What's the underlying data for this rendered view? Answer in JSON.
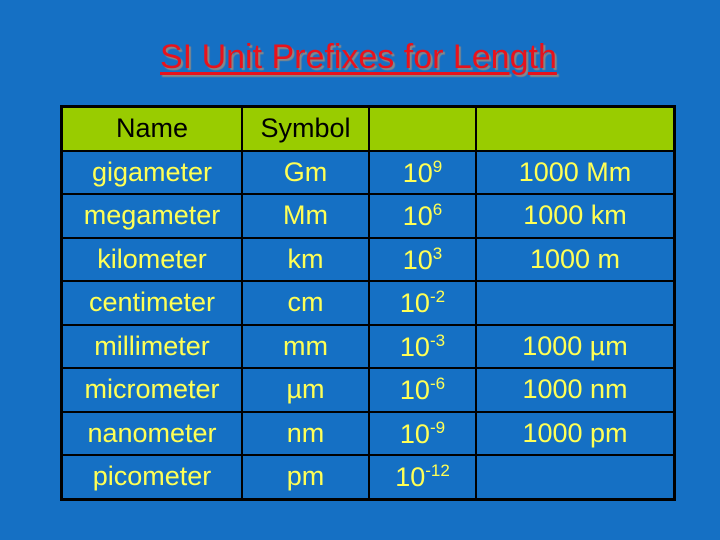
{
  "title": "SI Unit Prefixes for Length",
  "colors": {
    "background": "#1570c4",
    "header": "#99cc00",
    "text": "#ffff55",
    "title": "#e8121c"
  },
  "headers": [
    "Name",
    "Symbol",
    "",
    ""
  ],
  "rows": [
    {
      "name": "gigameter",
      "symbol": "Gm",
      "base": "10",
      "exp": "9",
      "equiv": "1000 Mm"
    },
    {
      "name": "megameter",
      "symbol": "Mm",
      "base": "10",
      "exp": "6",
      "equiv": "1000 km"
    },
    {
      "name": "kilometer",
      "symbol": "km",
      "base": "10",
      "exp": "3",
      "equiv": "1000 m"
    },
    {
      "name": "centimeter",
      "symbol": "cm",
      "base": "10",
      "exp": "-2",
      "equiv": ""
    },
    {
      "name": "millimeter",
      "symbol": "mm",
      "base": "10",
      "exp": "-3",
      "equiv": "1000 µm"
    },
    {
      "name": "micrometer",
      "symbol": "µm",
      "base": "10",
      "exp": "-6",
      "equiv": "1000 nm"
    },
    {
      "name": "nanometer",
      "symbol": "nm",
      "base": "10",
      "exp": "-9",
      "equiv": "1000 pm"
    },
    {
      "name": "picometer",
      "symbol": "pm",
      "base": "10",
      "exp": "-12",
      "equiv": ""
    }
  ]
}
